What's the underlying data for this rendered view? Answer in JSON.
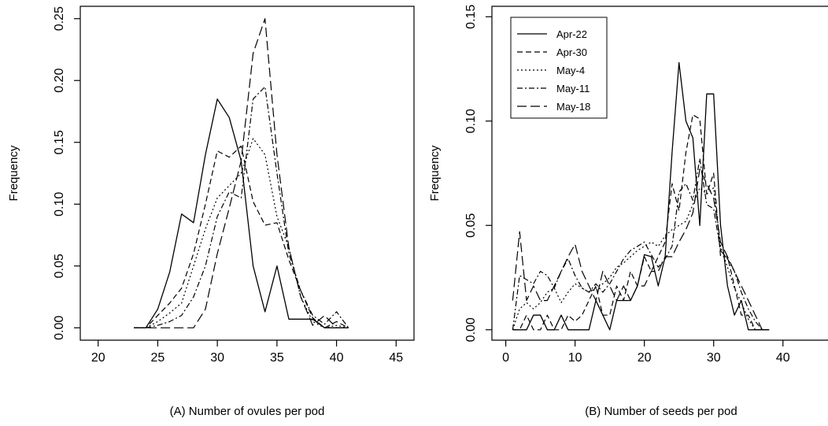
{
  "series_styles": [
    {
      "dash": "",
      "width": 1.3
    },
    {
      "dash": "7,4",
      "width": 1.2
    },
    {
      "dash": "2,3",
      "width": 1.2
    },
    {
      "dash": "7,3,2,3",
      "width": 1.2
    },
    {
      "dash": "12,5",
      "width": 1.2
    }
  ],
  "chart_data": [
    {
      "type": "line",
      "title": "",
      "xlabel": "(A) Number of ovules per pod",
      "ylabel": "Frequency",
      "xlim": [
        18.5,
        46.5
      ],
      "ylim": [
        -0.01,
        0.26
      ],
      "xticks": [
        20,
        25,
        30,
        35,
        40,
        45
      ],
      "yticks": [
        0.0,
        0.05,
        0.1,
        0.15,
        0.2,
        0.25
      ],
      "ytick_labels": [
        "0.00",
        "0.05",
        "0.10",
        "0.15",
        "0.20",
        "0.25"
      ],
      "grid": false,
      "legend": null,
      "x": [
        23,
        24,
        25,
        26,
        27,
        28,
        29,
        30,
        31,
        32,
        33,
        34,
        35,
        36,
        37,
        38,
        39,
        40,
        41
      ],
      "series": [
        {
          "name": "Apr-22",
          "values": [
            0.0,
            0.0,
            0.015,
            0.045,
            0.092,
            0.085,
            0.14,
            0.185,
            0.17,
            0.135,
            0.05,
            0.013,
            0.05,
            0.007,
            0.007,
            0.007,
            0.0,
            0.0,
            0.0
          ]
        },
        {
          "name": "Apr-30",
          "values": [
            0.0,
            0.0,
            0.01,
            0.02,
            0.032,
            0.06,
            0.1,
            0.143,
            0.138,
            0.147,
            0.102,
            0.083,
            0.085,
            0.055,
            0.03,
            0.008,
            0.0,
            0.005,
            0.0
          ]
        },
        {
          "name": "May-4",
          "values": [
            0.0,
            0.0,
            0.005,
            0.012,
            0.02,
            0.05,
            0.08,
            0.105,
            0.115,
            0.125,
            0.153,
            0.14,
            0.09,
            0.065,
            0.025,
            0.005,
            0.0,
            0.002,
            0.0
          ]
        },
        {
          "name": "May-11",
          "values": [
            0.0,
            0.0,
            0.002,
            0.005,
            0.01,
            0.025,
            0.05,
            0.09,
            0.11,
            0.105,
            0.185,
            0.195,
            0.125,
            0.06,
            0.03,
            0.01,
            0.003,
            0.013,
            0.0
          ]
        },
        {
          "name": "May-18",
          "values": [
            0.0,
            0.0,
            0.0,
            0.0,
            0.0,
            0.0,
            0.015,
            0.06,
            0.097,
            0.135,
            0.222,
            0.25,
            0.14,
            0.065,
            0.025,
            0.002,
            0.01,
            0.0,
            0.0
          ]
        }
      ]
    },
    {
      "type": "line",
      "title": "",
      "xlabel": "(B) Number of seeds per pod",
      "ylabel": "Frequency",
      "xlim": [
        -2,
        46.5
      ],
      "ylim": [
        -0.005,
        0.155
      ],
      "xticks": [
        0,
        10,
        20,
        30,
        40
      ],
      "yticks": [
        0.0,
        0.05,
        0.1,
        0.15
      ],
      "ytick_labels": [
        "0.00",
        "0.05",
        "0.10",
        "0.15"
      ],
      "grid": false,
      "legend": "top-left",
      "x": [
        1,
        2,
        3,
        4,
        5,
        6,
        7,
        8,
        9,
        10,
        11,
        12,
        13,
        14,
        15,
        16,
        17,
        18,
        19,
        20,
        21,
        22,
        23,
        24,
        25,
        26,
        27,
        28,
        29,
        30,
        31,
        32,
        33,
        34,
        35,
        36,
        37,
        38
      ],
      "series": [
        {
          "name": "Apr-22",
          "values": [
            0.0,
            0.0,
            0.0,
            0.007,
            0.007,
            0.0,
            0.0,
            0.007,
            0.0,
            0.0,
            0.0,
            0.0,
            0.014,
            0.007,
            0.0,
            0.014,
            0.014,
            0.014,
            0.021,
            0.036,
            0.035,
            0.021,
            0.035,
            0.085,
            0.128,
            0.1,
            0.092,
            0.05,
            0.113,
            0.113,
            0.05,
            0.021,
            0.007,
            0.014,
            0.0,
            0.0,
            0.0,
            0.0
          ]
        },
        {
          "name": "Apr-30",
          "values": [
            0.0,
            0.0,
            0.007,
            0.0,
            0.0,
            0.007,
            0.0,
            0.0,
            0.007,
            0.004,
            0.007,
            0.014,
            0.021,
            0.007,
            0.007,
            0.021,
            0.014,
            0.028,
            0.021,
            0.035,
            0.028,
            0.035,
            0.042,
            0.07,
            0.057,
            0.085,
            0.103,
            0.101,
            0.065,
            0.075,
            0.035,
            0.035,
            0.021,
            0.007,
            0.007,
            0.0,
            0.0,
            0.0
          ]
        },
        {
          "name": "May-4",
          "values": [
            0.0,
            0.01,
            0.013,
            0.01,
            0.013,
            0.018,
            0.02,
            0.013,
            0.018,
            0.022,
            0.02,
            0.018,
            0.02,
            0.022,
            0.025,
            0.03,
            0.032,
            0.035,
            0.038,
            0.04,
            0.042,
            0.04,
            0.045,
            0.048,
            0.05,
            0.052,
            0.06,
            0.068,
            0.065,
            0.068,
            0.04,
            0.03,
            0.02,
            0.013,
            0.005,
            0.0,
            0.0,
            0.0
          ]
        },
        {
          "name": "May-11",
          "values": [
            0.0,
            0.026,
            0.024,
            0.022,
            0.028,
            0.026,
            0.02,
            0.028,
            0.034,
            0.026,
            0.02,
            0.018,
            0.022,
            0.018,
            0.022,
            0.028,
            0.034,
            0.038,
            0.04,
            0.042,
            0.036,
            0.03,
            0.034,
            0.04,
            0.066,
            0.07,
            0.062,
            0.082,
            0.06,
            0.058,
            0.038,
            0.034,
            0.028,
            0.018,
            0.01,
            0.004,
            0.0,
            0.0
          ]
        },
        {
          "name": "May-18",
          "values": [
            0.014,
            0.047,
            0.014,
            0.021,
            0.014,
            0.014,
            0.021,
            0.028,
            0.035,
            0.041,
            0.028,
            0.021,
            0.014,
            0.028,
            0.021,
            0.014,
            0.021,
            0.014,
            0.021,
            0.021,
            0.028,
            0.028,
            0.035,
            0.035,
            0.042,
            0.048,
            0.056,
            0.077,
            0.07,
            0.063,
            0.042,
            0.035,
            0.028,
            0.021,
            0.014,
            0.007,
            0.0,
            0.0
          ]
        }
      ]
    }
  ]
}
